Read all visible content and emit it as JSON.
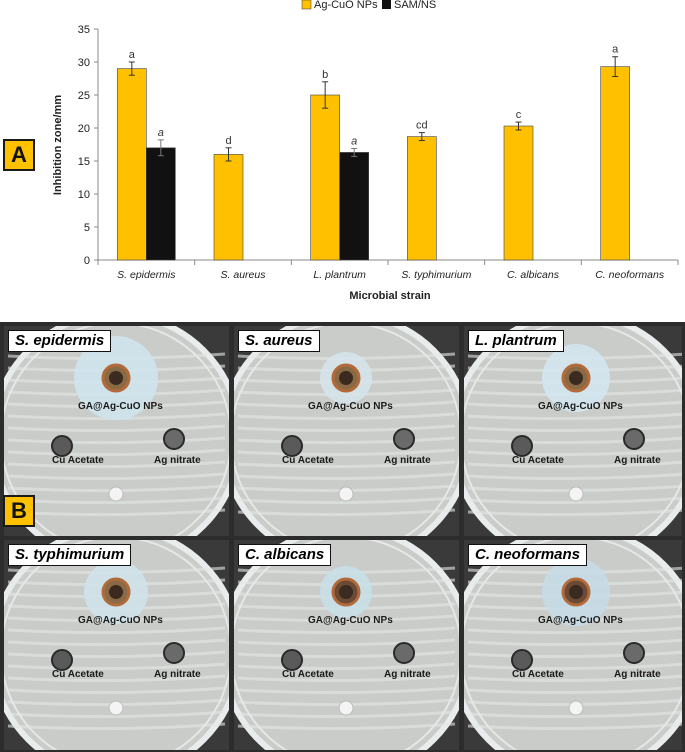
{
  "chart_data": {
    "type": "bar",
    "title": "",
    "xlabel": "Microbial strain",
    "ylabel": "Inhibition zone/mm",
    "ylim": [
      0,
      35
    ],
    "yticks": [
      "0",
      "5",
      "10",
      "15",
      "20",
      "25",
      "30",
      "35"
    ],
    "categories": [
      "S. epidermis",
      "S. aureus",
      "L. plantrum",
      "S. typhimurium",
      "C. albicans",
      "C. neoformans"
    ],
    "series": [
      {
        "name": "Ag-CuO NPs",
        "color": "#ffc000",
        "values": [
          29,
          16,
          25,
          18.7,
          20.3,
          29.3
        ],
        "errors": [
          1,
          1,
          2,
          0.6,
          0.6,
          1.5
        ],
        "labels": [
          "a",
          "d",
          "b",
          "cd",
          "c",
          "a"
        ]
      },
      {
        "name": "SAM/NS",
        "color": "#111111",
        "values": [
          17,
          null,
          16.3,
          null,
          null,
          null
        ],
        "errors": [
          1.2,
          null,
          0.6,
          null,
          null,
          null
        ],
        "labels": [
          "a",
          "",
          "a",
          "",
          "",
          ""
        ]
      }
    ],
    "legend_position": "top"
  },
  "panels": {
    "a": "A",
    "b": "B"
  },
  "plates": [
    {
      "title": "S. epidermis",
      "np": "GA@Ag-CuO NPs",
      "cu": "Cu Acetate",
      "ag": "Ag nitrate"
    },
    {
      "title": "S. aureus",
      "np": "GA@Ag-CuO NPs",
      "cu": "Cu Acetate",
      "ag": "Ag nitrate"
    },
    {
      "title": "L. plantrum",
      "np": "GA@Ag-CuO NPs",
      "cu": "Cu Acetate",
      "ag": "Ag nitrate"
    },
    {
      "title": "S. typhimurium",
      "np": "GA@Ag-CuO NPs",
      "cu": "Cu Acetate",
      "ag": "Ag nitrate"
    },
    {
      "title": "C. albicans",
      "np": "GA@Ag-CuO NPs",
      "cu": "Cu Acetate",
      "ag": "Ag nitrate"
    },
    {
      "title": "C. neoformans",
      "np": "GA@Ag-CuO NPs",
      "cu": "Cu Acetate",
      "ag": "Ag nitrate"
    }
  ]
}
